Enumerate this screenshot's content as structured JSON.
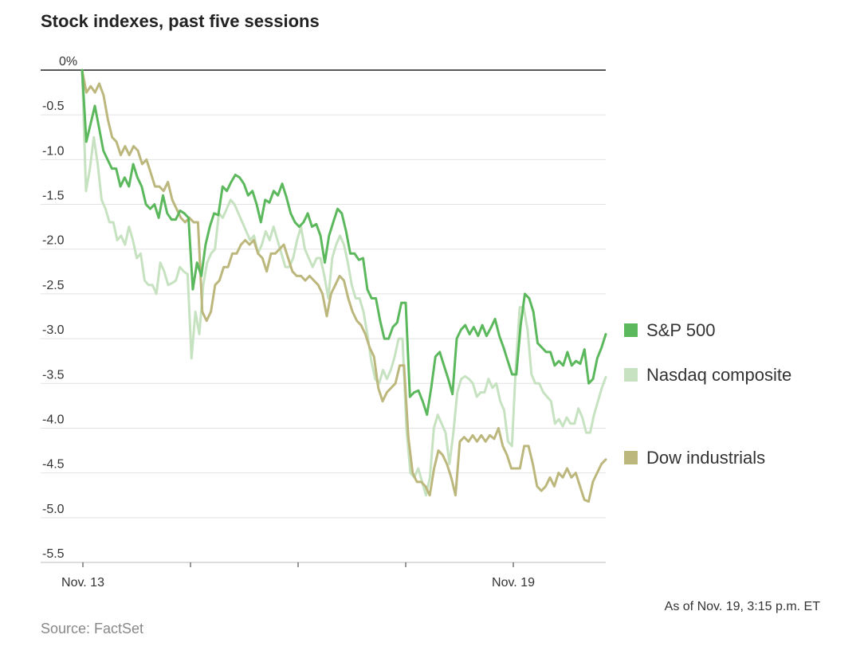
{
  "chart_data": {
    "type": "line",
    "title": "Stock indexes, past five sessions",
    "xlabel": "",
    "ylabel": "",
    "x_tick_labels": [
      "Nov. 13",
      "",
      "",
      "",
      "Nov. 19"
    ],
    "ylim": [
      -5.5,
      0
    ],
    "y_ticks": [
      {
        "value": 0,
        "label": "0%"
      },
      {
        "value": -0.5,
        "label": "-0.5"
      },
      {
        "value": -1.0,
        "label": "-1.0"
      },
      {
        "value": -1.5,
        "label": "-1.5"
      },
      {
        "value": -2.0,
        "label": "-2.0"
      },
      {
        "value": -2.5,
        "label": "-2.5"
      },
      {
        "value": -3.0,
        "label": "-3.0"
      },
      {
        "value": -3.5,
        "label": "-3.5"
      },
      {
        "value": -4.0,
        "label": "-4.0"
      },
      {
        "value": -4.5,
        "label": "-4.5"
      },
      {
        "value": -5.0,
        "label": "-5.0"
      },
      {
        "value": -5.5,
        "label": "-5.5"
      }
    ],
    "series": [
      {
        "name": "S&P 500",
        "color": "#5cb85c",
        "values": [
          0.0,
          -0.8,
          -0.6,
          -0.4,
          -0.65,
          -0.9,
          -1.0,
          -1.1,
          -1.1,
          -1.3,
          -1.2,
          -1.3,
          -1.05,
          -1.2,
          -1.3,
          -1.5,
          -1.55,
          -1.5,
          -1.65,
          -1.4,
          -1.6,
          -1.67,
          -1.67,
          -1.57,
          -1.6,
          -1.65,
          -2.45,
          -2.15,
          -2.3,
          -1.95,
          -1.75,
          -1.6,
          -1.62,
          -1.3,
          -1.35,
          -1.25,
          -1.17,
          -1.2,
          -1.27,
          -1.4,
          -1.35,
          -1.5,
          -1.7,
          -1.45,
          -1.48,
          -1.35,
          -1.4,
          -1.27,
          -1.42,
          -1.6,
          -1.7,
          -1.75,
          -1.7,
          -1.6,
          -1.75,
          -1.72,
          -1.85,
          -2.15,
          -1.85,
          -1.7,
          -1.55,
          -1.6,
          -1.8,
          -2.05,
          -2.05,
          -2.12,
          -2.1,
          -2.45,
          -2.55,
          -2.55,
          -2.8,
          -3.0,
          -3.0,
          -2.87,
          -2.82,
          -2.6,
          -2.6,
          -3.65,
          -3.6,
          -3.58,
          -3.7,
          -3.85,
          -3.55,
          -3.2,
          -3.15,
          -3.3,
          -3.45,
          -3.62,
          -3.0,
          -2.9,
          -2.85,
          -2.95,
          -2.87,
          -2.97,
          -2.85,
          -2.97,
          -2.88,
          -2.78,
          -2.97,
          -3.1,
          -3.25,
          -3.4,
          -3.4,
          -2.85,
          -2.5,
          -2.55,
          -2.7,
          -3.05,
          -3.1,
          -3.15,
          -3.15,
          -3.3,
          -3.25,
          -3.3,
          -3.15,
          -3.3,
          -3.25,
          -3.28,
          -3.12,
          -3.5,
          -3.45,
          -3.22,
          -3.1,
          -2.95
        ]
      },
      {
        "name": "Nasdaq composite",
        "color": "#c6e2c0",
        "values": [
          0.0,
          -1.35,
          -1.1,
          -0.75,
          -1.05,
          -1.45,
          -1.55,
          -1.7,
          -1.7,
          -1.9,
          -1.85,
          -1.95,
          -1.75,
          -1.9,
          -2.1,
          -2.05,
          -2.35,
          -2.4,
          -2.4,
          -2.5,
          -2.15,
          -2.25,
          -2.4,
          -2.38,
          -2.35,
          -2.2,
          -2.25,
          -2.28,
          -3.22,
          -2.7,
          -2.95,
          -2.4,
          -2.15,
          -2.05,
          -2.0,
          -1.6,
          -1.65,
          -1.55,
          -1.45,
          -1.5,
          -1.6,
          -1.7,
          -1.8,
          -1.9,
          -1.85,
          -2.05,
          -1.95,
          -1.8,
          -1.9,
          -1.75,
          -1.9,
          -2.05,
          -2.2,
          -2.2,
          -2.1,
          -1.9,
          -1.75,
          -2.0,
          -2.1,
          -2.2,
          -2.1,
          -2.1,
          -2.3,
          -2.55,
          -2.1,
          -1.95,
          -1.85,
          -1.95,
          -2.15,
          -2.4,
          -2.55,
          -2.55,
          -2.7,
          -2.95,
          -3.25,
          -3.45,
          -3.5,
          -3.35,
          -3.45,
          -3.35,
          -3.2,
          -3.0,
          -3.0,
          -4.0,
          -4.5,
          -4.55,
          -4.45,
          -4.6,
          -4.75,
          -4.55,
          -4.0,
          -3.85,
          -3.95,
          -4.05,
          -4.4,
          -4.05,
          -3.6,
          -3.45,
          -3.42,
          -3.45,
          -3.5,
          -3.65,
          -3.6,
          -3.6,
          -3.45,
          -3.55,
          -3.5,
          -3.7,
          -3.8,
          -4.15,
          -4.2,
          -3.3,
          -2.65,
          -2.65,
          -2.9,
          -3.4,
          -3.5,
          -3.5,
          -3.6,
          -3.65,
          -3.7,
          -3.95,
          -3.9,
          -3.98,
          -3.88,
          -3.95,
          -3.95,
          -3.78,
          -3.88,
          -4.05,
          -4.05,
          -3.85,
          -3.7,
          -3.55,
          -3.43
        ]
      },
      {
        "name": "Dow industrials",
        "color": "#bcb77c",
        "values": [
          0.0,
          -0.25,
          -0.18,
          -0.25,
          -0.15,
          -0.28,
          -0.55,
          -0.75,
          -0.8,
          -0.95,
          -0.85,
          -0.95,
          -0.85,
          -0.9,
          -1.05,
          -1.0,
          -1.15,
          -1.3,
          -1.3,
          -1.35,
          -1.25,
          -1.45,
          -1.55,
          -1.65,
          -1.7,
          -1.65,
          -1.7,
          -1.7,
          -2.7,
          -2.8,
          -2.7,
          -2.4,
          -2.35,
          -2.2,
          -2.2,
          -2.05,
          -2.05,
          -1.95,
          -1.9,
          -1.95,
          -1.9,
          -2.05,
          -2.1,
          -2.25,
          -2.05,
          -2.05,
          -2.0,
          -1.95,
          -2.1,
          -2.25,
          -2.3,
          -2.3,
          -2.35,
          -2.3,
          -2.35,
          -2.4,
          -2.5,
          -2.75,
          -2.5,
          -2.4,
          -2.3,
          -2.35,
          -2.55,
          -2.7,
          -2.8,
          -2.85,
          -2.95,
          -3.1,
          -3.2,
          -3.55,
          -3.7,
          -3.6,
          -3.55,
          -3.5,
          -3.3,
          -3.3,
          -4.1,
          -4.5,
          -4.6,
          -4.6,
          -4.65,
          -4.75,
          -4.45,
          -4.25,
          -4.3,
          -4.4,
          -4.55,
          -4.75,
          -4.15,
          -4.1,
          -4.15,
          -4.08,
          -4.15,
          -4.08,
          -4.15,
          -4.08,
          -4.12,
          -4.0,
          -4.2,
          -4.3,
          -4.45,
          -4.45,
          -4.45,
          -4.2,
          -4.2,
          -4.4,
          -4.65,
          -4.7,
          -4.65,
          -4.55,
          -4.65,
          -4.5,
          -4.55,
          -4.45,
          -4.55,
          -4.5,
          -4.65,
          -4.8,
          -4.82,
          -4.6,
          -4.5,
          -4.4,
          -4.35
        ]
      }
    ],
    "legend": [
      {
        "name": "S&P 500",
        "color": "#5cb85c"
      },
      {
        "name": "Nasdaq composite",
        "color": "#c6e2c0"
      },
      {
        "name": "Dow industrials",
        "color": "#bcb77c"
      }
    ],
    "annotations": {
      "as_of": "As of Nov. 19, 3:15 p.m. ET",
      "source": "Source: FactSet"
    }
  }
}
